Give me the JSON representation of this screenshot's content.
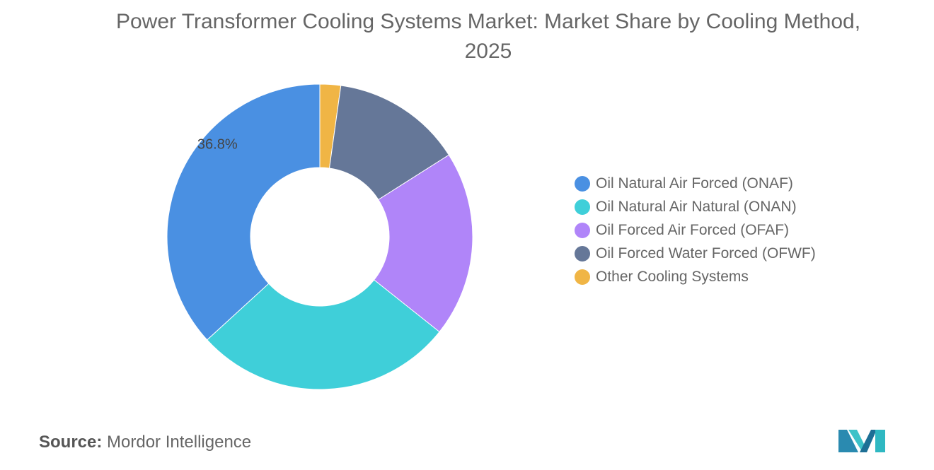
{
  "chart_data": {
    "type": "pie",
    "title": "Power Transformer Cooling Systems Market: Market Share by Cooling Method, 2025",
    "series": [
      {
        "name": "Oil Natural Air Forced (ONAF)",
        "value": 36.8,
        "color": "#4a90e2"
      },
      {
        "name": "Oil Natural Air Natural (ONAN)",
        "value": 27.5,
        "color": "#3fcfd9"
      },
      {
        "name": "Oil Forced Air Forced (OFAF)",
        "value": 19.7,
        "color": "#b085f9"
      },
      {
        "name": "Oil Forced Water Forced (OFWF)",
        "value": 13.8,
        "color": "#657798"
      },
      {
        "name": "Other Cooling Systems",
        "value": 2.2,
        "color": "#f0b545"
      }
    ],
    "data_labels": [
      {
        "series": "Oil Natural Air Forced (ONAF)",
        "text": "36.8%"
      }
    ],
    "legend_position": "right",
    "donut": true
  },
  "source": {
    "label": "Source:",
    "value": "Mordor Intelligence"
  }
}
